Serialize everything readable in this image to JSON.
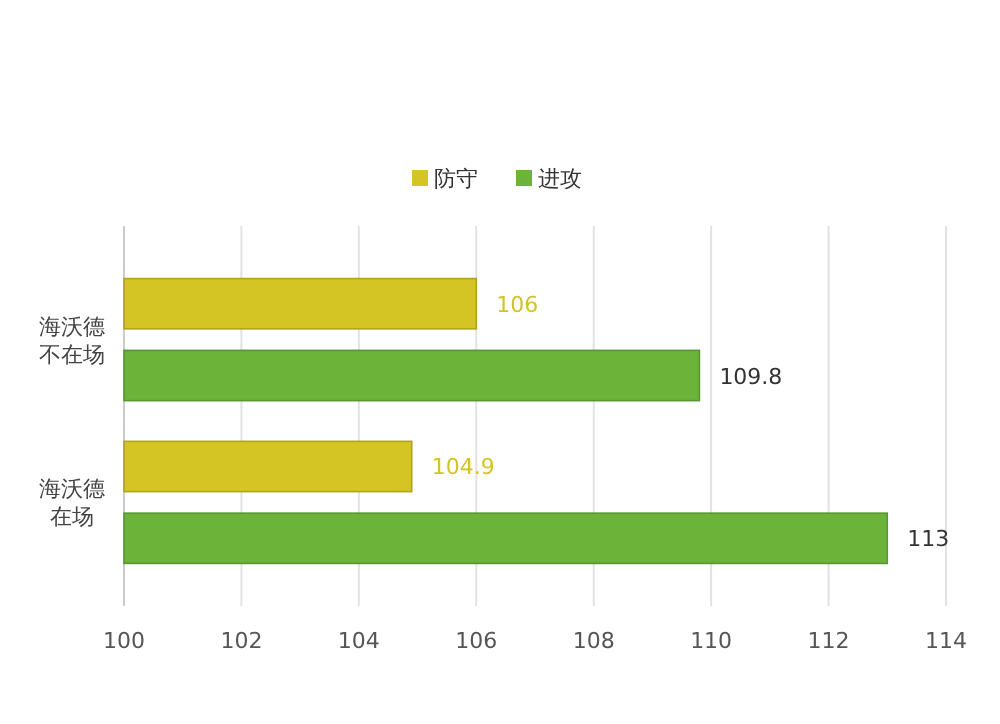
{
  "chart_data": {
    "type": "bar",
    "orientation": "horizontal",
    "categories": [
      "海沃德不在场",
      "海沃德在场"
    ],
    "series": [
      {
        "name": "防守",
        "color": "#d4c424",
        "values": [
          106,
          104.9
        ]
      },
      {
        "name": "进攻",
        "color": "#6cb33a",
        "values": [
          109.8,
          113
        ]
      }
    ],
    "xlim": [
      100,
      114
    ],
    "xticks": [
      100,
      102,
      104,
      106,
      108,
      110,
      112,
      114
    ],
    "grid": "x",
    "legend": "top",
    "data_labels": true
  }
}
